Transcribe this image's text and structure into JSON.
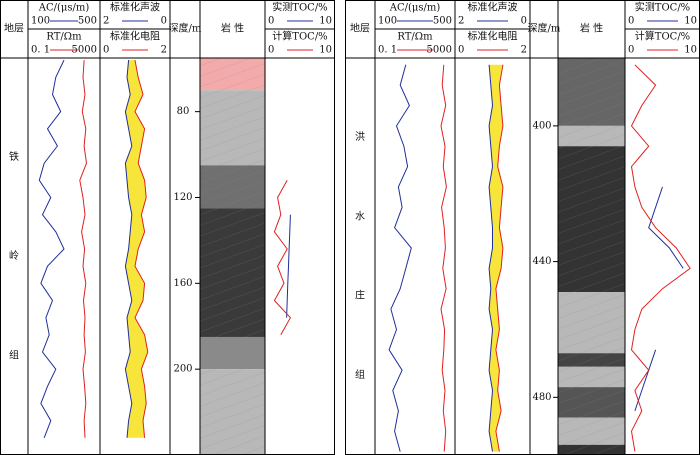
{
  "chart_data": [
    {
      "type": "well-log",
      "strata_label": "地层",
      "depth_label": "深度/m",
      "lithology_label": "岩 性",
      "formation": [
        "铁",
        "岭",
        "组"
      ],
      "ylim": [
        55,
        240
      ],
      "yticks": [
        80,
        120,
        160,
        200
      ],
      "depth": [
        56,
        64,
        72,
        80,
        88,
        96,
        104,
        112,
        120,
        128,
        136,
        144,
        152,
        160,
        168,
        176,
        184,
        192,
        200,
        208,
        216,
        224,
        232
      ],
      "layers": [
        {
          "top": 55,
          "bottom": 70,
          "color": "#f2aaaa"
        },
        {
          "top": 70,
          "bottom": 105,
          "color": "#b8b8b8"
        },
        {
          "top": 105,
          "bottom": 125,
          "color": "#707070"
        },
        {
          "top": 125,
          "bottom": 185,
          "color": "#3a3a3a"
        },
        {
          "top": 185,
          "bottom": 200,
          "color": "#8a8a8a"
        },
        {
          "top": 200,
          "bottom": 240,
          "color": "#b8b8b8"
        }
      ],
      "tracks": [
        {
          "series": [
            {
              "name": "AC/(μs/m)",
              "color": "#1f2f9a",
              "xlim": [
                100,
                500
              ],
              "values": [
                300,
                250,
                230,
                280,
                200,
                260,
                180,
                150,
                220,
                170,
                250,
                300,
                200,
                160,
                230,
                190,
                210,
                170,
                250,
                200,
                160,
                220,
                180
              ]
            },
            {
              "name": "RT/Ωm",
              "color": "#e02020",
              "log": true,
              "xlim": [
                {
                  "value": 0.1,
                  "label": "0. 1"
                },
                5000
              ],
              "values": [
                600,
                500,
                700,
                450,
                800,
                600,
                900,
                300,
                500,
                700,
                400,
                650,
                500,
                800,
                550,
                700,
                600,
                750,
                500,
                650,
                800,
                600,
                700
              ]
            }
          ]
        },
        {
          "fill": "#f7e53b",
          "series": [
            {
              "name": "标准化声波",
              "color": "#1f2f9a",
              "xlim": [
                2,
                0
              ],
              "values": [
                1.2,
                1.25,
                1.15,
                1.3,
                1.2,
                1.1,
                1.3,
                1.25,
                1.2,
                1.1,
                1.15,
                1.2,
                1.3,
                1.2,
                1.1,
                1.25,
                1.2,
                1.15,
                1.3,
                1.2,
                1.1,
                1.2,
                1.25
              ]
            },
            {
              "name": "标准化电阻",
              "color": "#e02020",
              "xlim": [
                0,
                2
              ],
              "values": [
                1.0,
                1.1,
                1.25,
                1.0,
                1.3,
                1.2,
                1.1,
                1.3,
                1.35,
                1.2,
                1.3,
                1.1,
                1.0,
                1.3,
                1.25,
                1.0,
                1.3,
                1.4,
                1.2,
                1.3,
                1.35,
                1.25,
                1.3
              ]
            }
          ]
        },
        {
          "series": [
            {
              "name": "实测TOC/%",
              "color": "#1f2f9a",
              "xlim": [
                0,
                10
              ],
              "values": [
                null,
                null,
                null,
                null,
                null,
                null,
                null,
                null,
                null,
                3.5,
                3.4,
                3.3,
                3.2,
                3.1,
                3.0,
                2.9,
                null,
                null,
                null,
                null,
                null,
                null,
                null
              ]
            },
            {
              "name": "计算TOC/%",
              "color": "#e02020",
              "xlim": [
                0,
                10
              ],
              "values": [
                null,
                null,
                null,
                null,
                null,
                null,
                null,
                3,
                1.5,
                2,
                1,
                3,
                1.5,
                2.5,
                1,
                3.5,
                2,
                null,
                null,
                null,
                null,
                null,
                null
              ]
            }
          ]
        }
      ]
    },
    {
      "type": "well-log",
      "strata_label": "地层",
      "depth_label": "深度/m",
      "lithology_label": "岩 性",
      "formation": [
        "洪",
        "水",
        "庄",
        "组"
      ],
      "ylim": [
        380,
        497
      ],
      "yticks": [
        400,
        440,
        480
      ],
      "depth": [
        382,
        388,
        394,
        400,
        406,
        412,
        418,
        424,
        430,
        436,
        442,
        448,
        454,
        460,
        466,
        472,
        478,
        484,
        490,
        496
      ],
      "layers": [
        {
          "top": 380,
          "bottom": 400,
          "color": "#666666"
        },
        {
          "top": 400,
          "bottom": 406,
          "color": "#b8b8b8"
        },
        {
          "top": 406,
          "bottom": 449,
          "color": "#333333"
        },
        {
          "top": 449,
          "bottom": 467,
          "color": "#b8b8b8"
        },
        {
          "top": 467,
          "bottom": 471,
          "color": "#444444"
        },
        {
          "top": 471,
          "bottom": 477,
          "color": "#b8b8b8"
        },
        {
          "top": 477,
          "bottom": 486,
          "color": "#555555"
        },
        {
          "top": 486,
          "bottom": 494,
          "color": "#b8b8b8"
        },
        {
          "top": 494,
          "bottom": 497,
          "color": "#333333"
        }
      ],
      "tracks": [
        {
          "series": [
            {
              "name": "AC/(μs/m)",
              "color": "#1f2f9a",
              "xlim": [
                100,
                500
              ],
              "values": [
                250,
                220,
                270,
                200,
                240,
                260,
                210,
                230,
                190,
                280,
                250,
                220,
                170,
                200,
                160,
                230,
                180,
                210,
                190,
                220
              ]
            },
            {
              "name": "RT/Ωm",
              "color": "#e02020",
              "log": true,
              "xlim": [
                {
                  "value": 0.1,
                  "label": "0. 1"
                },
                5000
              ],
              "values": [
                1500,
                1200,
                2000,
                1000,
                1800,
                1400,
                2200,
                1100,
                1600,
                1900,
                1300,
                2100,
                1000,
                1700,
                1500,
                1200,
                1800,
                1400,
                2000,
                1600
              ]
            }
          ]
        },
        {
          "fill": "#f7e53b",
          "series": [
            {
              "name": "标准化声波",
              "color": "#1f2f9a",
              "xlim": [
                2,
                0
              ],
              "values": [
                1.1,
                1.05,
                1.0,
                1.1,
                1.05,
                1.0,
                1.1,
                1.05,
                1.0,
                1.0,
                1.1,
                1.05,
                1.1,
                1.0,
                1.05,
                1.1,
                1.0,
                1.05,
                1.1,
                1.0
              ]
            },
            {
              "name": "标准化电阻",
              "color": "#e02020",
              "xlim": [
                0,
                2
              ],
              "values": [
                1.3,
                1.2,
                1.25,
                1.3,
                1.2,
                1.15,
                1.3,
                1.25,
                1.2,
                1.3,
                1.25,
                1.1,
                1.15,
                1.2,
                1.1,
                1.2,
                1.15,
                1.25,
                1.1,
                1.2
              ]
            }
          ]
        },
        {
          "series": [
            {
              "name": "实测TOC/%",
              "color": "#1f2f9a",
              "xlim": [
                0,
                10
              ],
              "values": [
                null,
                null,
                null,
                null,
                null,
                null,
                5,
                4,
                3,
                6,
                8,
                null,
                null,
                null,
                4,
                3,
                2,
                1,
                null,
                null
              ]
            },
            {
              "name": "计算TOC/%",
              "color": "#e02020",
              "xlim": [
                0,
                10
              ],
              "values": [
                1,
                4,
                2,
                0.5,
                3,
                0.5,
                1,
                2,
                4,
                7,
                9,
                5,
                2,
                1,
                0.5,
                3,
                1,
                2,
                0.5,
                1
              ]
            }
          ]
        }
      ]
    }
  ]
}
